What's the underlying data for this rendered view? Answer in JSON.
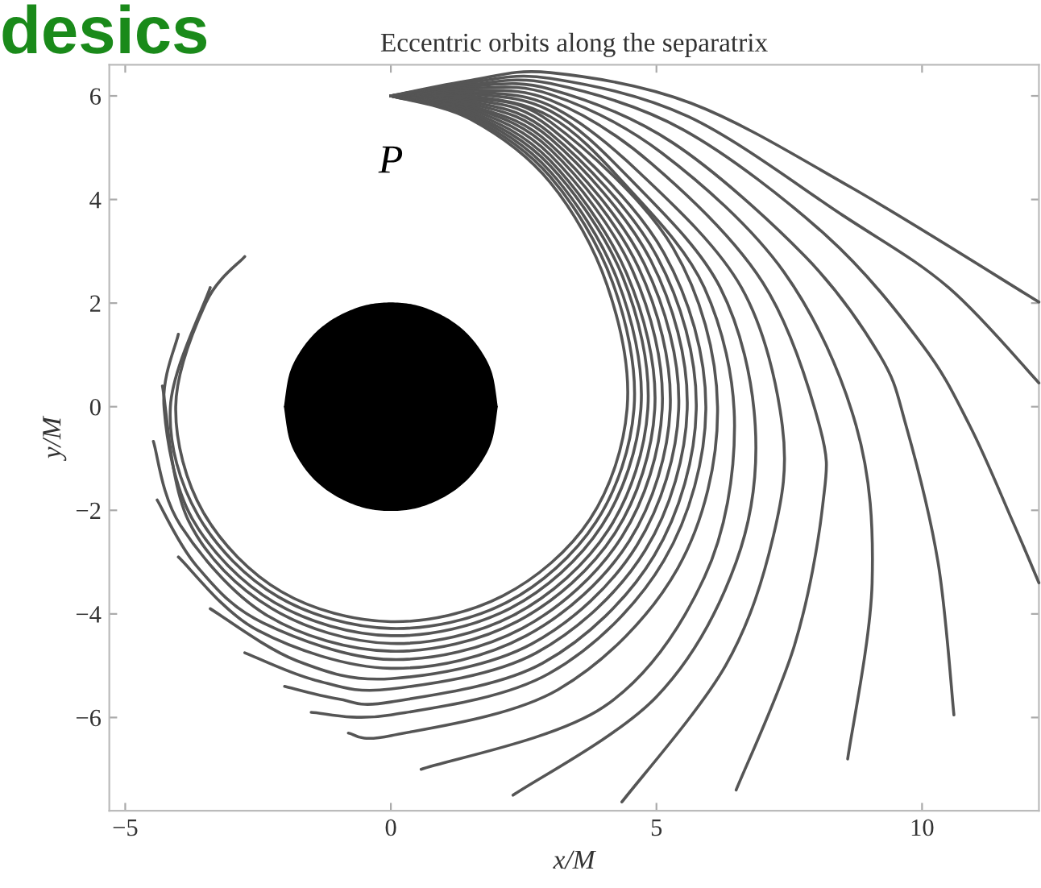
{
  "chart_data": {
    "type": "line",
    "title": "Eccentric orbits along the separatrix",
    "xlabel": "x/M",
    "ylabel": "y/M",
    "xlim": [
      -5.3,
      12.2
    ],
    "ylim": [
      -7.8,
      6.6
    ],
    "xticks": [
      {
        "value": -5,
        "label": "−5"
      },
      0,
      5,
      10
    ],
    "yticks": [
      {
        "value": -6,
        "label": "−6"
      },
      {
        "value": -4,
        "label": "−4"
      },
      {
        "value": -2,
        "label": "−2"
      },
      0,
      2,
      4,
      6
    ],
    "line_style": "solid",
    "annotations": [
      "P",
      "desics"
    ],
    "series": [
      {
        "type": "area",
        "color": "#000000",
        "x": [
          -2,
          -1.9,
          -1.7,
          -1.4,
          -1,
          -0.5,
          0,
          0.5,
          1,
          1.4,
          1.7,
          1.9,
          2
        ],
        "values": [
          0,
          0.62,
          1.05,
          1.43,
          1.73,
          1.94,
          2,
          1.94,
          1.73,
          1.43,
          1.05,
          0.62,
          0
        ]
      },
      {
        "type": "area",
        "color": "#000000",
        "x": [
          -2,
          -1.9,
          -1.7,
          -1.4,
          -1,
          -0.5,
          0,
          0.5,
          1,
          1.4,
          1.7,
          1.9,
          2
        ],
        "values": [
          0,
          -0.62,
          -1.05,
          -1.43,
          -1.73,
          -1.94,
          -2,
          -1.94,
          -1.73,
          -1.43,
          -1.05,
          -0.62,
          0
        ]
      },
      {
        "color": "#555555",
        "x": [
          0,
          1.5,
          3.0,
          4.07,
          4.45,
          3.75,
          2.11,
          0,
          -2.06,
          -3.53,
          -4.05,
          -3.48,
          -2.75
        ],
        "values": [
          6,
          5.55,
          4.33,
          2.35,
          0,
          -2.17,
          -3.65,
          -4.15,
          -3.57,
          -2.04,
          0,
          2.01,
          2.9
        ]
      },
      {
        "color": "#555555",
        "x": [
          0,
          1.5,
          3.0,
          4.17,
          4.58,
          3.86,
          2.18,
          0,
          -2.12,
          -3.63,
          -4.15,
          -3.4
        ],
        "values": [
          6,
          5.59,
          4.44,
          2.41,
          0,
          -2.23,
          -3.78,
          -4.28,
          -3.67,
          -2.1,
          0,
          2.3
        ]
      },
      {
        "color": "#555555",
        "x": [
          0,
          1.5,
          3.0,
          4.26,
          4.71,
          3.97,
          2.25,
          0,
          -2.19,
          -3.74,
          -4.27,
          -4.0
        ],
        "values": [
          6,
          5.63,
          4.54,
          2.46,
          0,
          -2.3,
          -3.89,
          -4.42,
          -3.78,
          -2.16,
          0,
          1.4
        ]
      },
      {
        "color": "#555555",
        "x": [
          0,
          1.5,
          3.0,
          4.36,
          4.84,
          4.1,
          2.32,
          0,
          -2.25,
          -3.81,
          -4.3
        ],
        "values": [
          6,
          5.66,
          4.65,
          2.52,
          0,
          -2.37,
          -4.02,
          -4.57,
          -3.89,
          -2.2,
          0.4
        ]
      },
      {
        "color": "#555555",
        "x": [
          0,
          1.5,
          3.0,
          4.44,
          4.97,
          4.22,
          2.39,
          0,
          -2.33,
          -3.96,
          -4.47
        ],
        "values": [
          6,
          5.7,
          4.75,
          2.57,
          0,
          -2.44,
          -4.14,
          -4.72,
          -4.03,
          -2.29,
          -0.67
        ]
      },
      {
        "color": "#555555",
        "x": [
          0,
          1.5,
          3.0,
          4.55,
          5.11,
          4.35,
          2.47,
          0,
          -2.41,
          -3.66,
          -4.4
        ],
        "values": [
          6,
          5.74,
          4.86,
          2.63,
          0,
          -2.51,
          -4.28,
          -4.88,
          -4.17,
          -3.07,
          -1.8
        ]
      },
      {
        "color": "#555555",
        "x": [
          0,
          1.5,
          3.0,
          4.66,
          5.26,
          4.49,
          2.55,
          0,
          -2.5,
          -4.0
        ],
        "values": [
          6,
          5.78,
          4.97,
          2.69,
          0,
          -2.59,
          -4.42,
          -5.05,
          -4.32,
          -2.9
        ]
      },
      {
        "color": "#555555",
        "x": [
          0,
          1.5,
          3.0,
          4.77,
          5.42,
          4.63,
          2.65,
          0,
          -1.78,
          -3.4
        ],
        "values": [
          6,
          5.81,
          5.07,
          2.76,
          0,
          -2.68,
          -4.58,
          -5.25,
          -4.9,
          -3.9
        ]
      },
      {
        "color": "#555555",
        "x": [
          0,
          1.5,
          3.0,
          4.89,
          5.58,
          4.79,
          2.74,
          0,
          -1.42,
          -2.75
        ],
        "values": [
          6,
          5.85,
          5.18,
          2.83,
          0,
          -2.77,
          -4.75,
          -5.45,
          -5.28,
          -4.75
        ]
      },
      {
        "color": "#555555",
        "x": [
          0,
          1.5,
          3.0,
          5.01,
          5.75,
          4.96,
          2.86,
          0,
          -1.0,
          -2.0
        ],
        "values": [
          6,
          5.89,
          5.28,
          2.9,
          0,
          -2.87,
          -4.95,
          -5.7,
          -5.64,
          -5.4
        ]
      },
      {
        "color": "#555555",
        "x": [
          0,
          1.5,
          3.0,
          5.14,
          5.93,
          5.14,
          2.98,
          0,
          -1.5
        ],
        "values": [
          6,
          5.93,
          5.39,
          2.97,
          0,
          -2.97,
          -5.15,
          -5.95,
          -5.9
        ]
      },
      {
        "color": "#555555",
        "x": [
          0,
          1.5,
          3.0,
          5.31,
          6.15,
          5.4,
          3.15,
          0,
          -0.8
        ],
        "values": [
          6,
          5.96,
          5.5,
          3.07,
          0,
          -3.12,
          -5.46,
          -6.35,
          -6.3
        ]
      },
      {
        "color": "#555555",
        "x": [
          0,
          1.5,
          3.0,
          4.4,
          5.9,
          6.47,
          5.9,
          4.0,
          0.57
        ],
        "values": [
          6,
          6.0,
          5.6,
          4.3,
          2.3,
          -0.37,
          -3.3,
          -5.8,
          -7.0
        ]
      },
      {
        "color": "#555555",
        "x": [
          0,
          1.5,
          3.0,
          4.5,
          6.2,
          6.86,
          6.5,
          5.0,
          2.3
        ],
        "values": [
          6,
          6.04,
          5.71,
          4.4,
          2.3,
          -0.37,
          -3.0,
          -5.6,
          -7.5
        ]
      },
      {
        "color": "#555555",
        "x": [
          0,
          1.5,
          3.0,
          4.7,
          6.6,
          7.37,
          7.2,
          6.3,
          4.35
        ],
        "values": [
          6,
          6.07,
          5.81,
          4.5,
          2.3,
          -0.37,
          -2.5,
          -5.0,
          -7.63
        ]
      },
      {
        "color": "#555555",
        "x": [
          0,
          1.5,
          3.0,
          4.9,
          7.0,
          8.07,
          8.13,
          7.6,
          6.5
        ],
        "values": [
          6,
          6.11,
          5.92,
          4.7,
          2.4,
          -0.37,
          -1.9,
          -4.6,
          -7.4
        ]
      },
      {
        "color": "#555555",
        "x": [
          0,
          1.5,
          3.0,
          5.1,
          7.4,
          8.76,
          9.06,
          8.6
        ],
        "values": [
          6,
          6.15,
          6.03,
          4.9,
          2.6,
          -0.37,
          -3.4,
          -6.8
        ]
      },
      {
        "color": "#555555",
        "x": [
          0,
          1.5,
          3.0,
          5.3,
          7.8,
          9.2,
          9.7,
          10.3,
          10.6
        ],
        "values": [
          6,
          6.19,
          6.13,
          5.1,
          2.9,
          1.0,
          -0.37,
          -3.0,
          -5.95
        ]
      },
      {
        "color": "#555555",
        "x": [
          0,
          1.5,
          3.0,
          5.5,
          8.2,
          10.0,
          10.9,
          11.7,
          12.2
        ],
        "values": [
          6,
          6.22,
          6.24,
          5.35,
          3.3,
          1.2,
          -0.37,
          -2.2,
          -3.4
        ]
      },
      {
        "color": "#555555",
        "x": [
          0,
          1.5,
          3.0,
          5.6,
          8.5,
          10.5,
          12.2
        ],
        "values": [
          6,
          6.26,
          6.34,
          5.6,
          3.7,
          2.3,
          0.46
        ]
      },
      {
        "color": "#555555",
        "x": [
          0,
          1.5,
          3.0,
          5.65,
          8.67,
          12.2
        ],
        "values": [
          6,
          6.3,
          6.45,
          5.86,
          4.23,
          2.02
        ]
      }
    ]
  }
}
